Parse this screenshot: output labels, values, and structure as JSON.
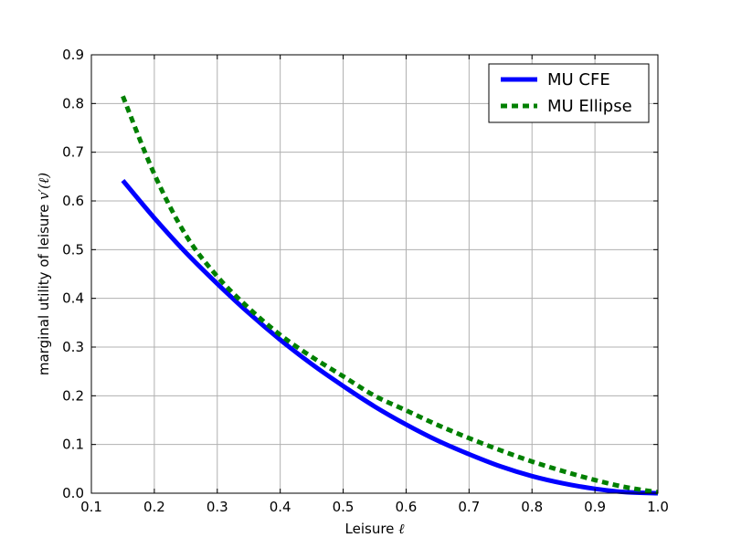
{
  "chart_data": {
    "type": "line",
    "xlabel": "Leisure",
    "xlabel_symbol": "ℓ",
    "ylabel": "marginal utility of leisure",
    "ylabel_symbol": "v′(ℓ)",
    "xlim": [
      0.1,
      1.0
    ],
    "ylim": [
      0.0,
      0.9
    ],
    "xticks": [
      "0.1",
      "0.2",
      "0.3",
      "0.4",
      "0.5",
      "0.6",
      "0.7",
      "0.8",
      "0.9",
      "1.0"
    ],
    "yticks": [
      "0.0",
      "0.1",
      "0.2",
      "0.3",
      "0.4",
      "0.5",
      "0.6",
      "0.7",
      "0.8",
      "0.9"
    ],
    "grid": true,
    "legend_position": "top-right",
    "series": [
      {
        "name": "MU CFE",
        "color": "#0000ff",
        "style": "solid",
        "x": [
          0.15,
          0.2,
          0.25,
          0.3,
          0.35,
          0.4,
          0.45,
          0.5,
          0.55,
          0.6,
          0.65,
          0.7,
          0.75,
          0.8,
          0.85,
          0.9,
          0.95,
          1.0
        ],
        "y": [
          0.642,
          0.565,
          0.494,
          0.43,
          0.37,
          0.315,
          0.265,
          0.22,
          0.178,
          0.141,
          0.108,
          0.08,
          0.055,
          0.035,
          0.02,
          0.009,
          0.002,
          0.0
        ]
      },
      {
        "name": "MU Ellipse",
        "color": "#008000",
        "style": "dashed",
        "x": [
          0.15,
          0.2,
          0.25,
          0.3,
          0.35,
          0.4,
          0.45,
          0.5,
          0.55,
          0.6,
          0.65,
          0.7,
          0.75,
          0.8,
          0.85,
          0.9,
          0.95,
          1.0
        ],
        "y": [
          0.815,
          0.655,
          0.53,
          0.445,
          0.38,
          0.325,
          0.28,
          0.24,
          0.2,
          0.17,
          0.14,
          0.113,
          0.088,
          0.065,
          0.045,
          0.027,
          0.012,
          0.002
        ]
      }
    ]
  }
}
